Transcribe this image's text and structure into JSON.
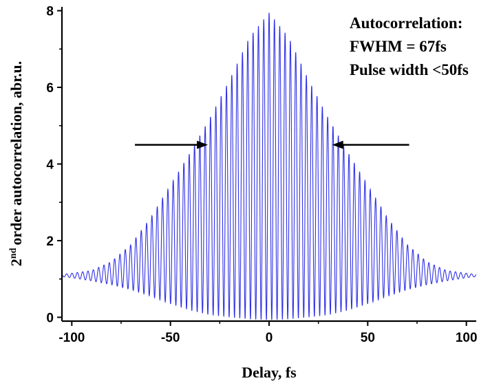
{
  "chart_data": {
    "type": "line",
    "xlabel": "Delay, fs",
    "ylabel_prefix": "2",
    "ylabel_superscript": "nd",
    "ylabel_suffix": "order autocorrelation, abr.u.",
    "xlim": [
      -105,
      105
    ],
    "ylim": [
      -0.1,
      8.1
    ],
    "xticks": [
      -100,
      -50,
      0,
      50,
      100
    ],
    "yticks": [
      0,
      2,
      4,
      6,
      8
    ],
    "grid": false,
    "series": [
      {
        "color": "#2f2fe6",
        "fringe_period_fs": 2.7,
        "envelope_upper": {
          "x": [
            -105,
            -100,
            -90,
            -80,
            -70,
            -60,
            -50,
            -40,
            -30,
            -20,
            -10,
            0,
            10,
            20,
            30,
            40,
            50,
            60,
            70,
            80,
            90,
            100,
            105
          ],
          "y": [
            1.12,
            1.15,
            1.22,
            1.45,
            1.9,
            2.6,
            3.45,
            4.3,
            5.2,
            6.2,
            7.3,
            7.95,
            7.3,
            6.2,
            5.2,
            4.3,
            3.45,
            2.6,
            1.9,
            1.45,
            1.22,
            1.15,
            1.12
          ]
        },
        "envelope_lower": {
          "x": [
            -105,
            -100,
            -90,
            -80,
            -70,
            -60,
            -50,
            -40,
            -30,
            -20,
            -10,
            0,
            10,
            20,
            30,
            40,
            50,
            60,
            70,
            80,
            90,
            100,
            105
          ],
          "y": [
            1.06,
            1.03,
            0.95,
            0.85,
            0.72,
            0.55,
            0.35,
            0.18,
            0.06,
            0.0,
            -0.05,
            -0.07,
            -0.05,
            0.0,
            0.06,
            0.18,
            0.35,
            0.55,
            0.72,
            0.85,
            0.95,
            1.03,
            1.06
          ]
        }
      }
    ],
    "annotations": {
      "lines": [
        "Autocorrelation:",
        "FWHM = 67fs",
        "Pulse width <50fs"
      ],
      "arrows": [
        {
          "from": [
            -68,
            4.5
          ],
          "to": [
            -31,
            4.5
          ]
        },
        {
          "from": [
            71,
            4.5
          ],
          "to": [
            32,
            4.5
          ]
        }
      ],
      "arrow_color": "#000000"
    }
  }
}
